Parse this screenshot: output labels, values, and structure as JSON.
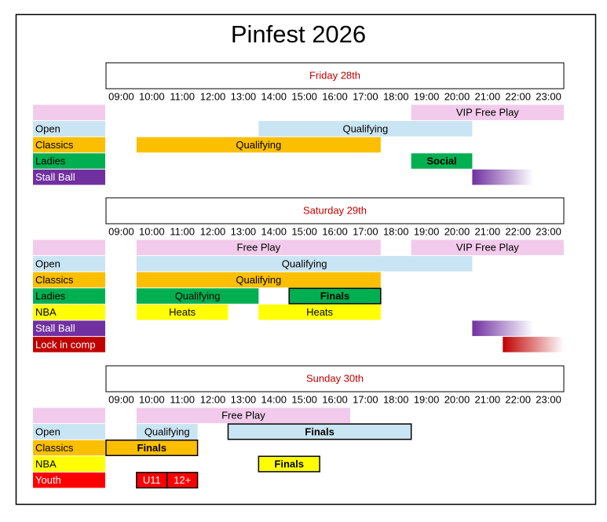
{
  "title": "Pinfest 2026",
  "days": [
    {
      "title": "Friday 28th",
      "times": [
        "09:00",
        "10:00",
        "11:00",
        "12:00",
        "13:00",
        "14:00",
        "15:00",
        "16:00",
        "17:00",
        "18:00",
        "19:00",
        "20:00",
        "21:00",
        "22:00",
        "23:00"
      ],
      "rows": [
        {
          "label": null,
          "color": "#f2cbec",
          "text_color": "#000000",
          "events": [
            {
              "text": "VIP Free Play",
              "start": 19,
              "end": 24
            }
          ]
        },
        {
          "label": "Open",
          "color": "#c9e4f2",
          "text_color": "#000000",
          "events": [
            {
              "text": "Qualifying",
              "start": 14,
              "end": 21
            }
          ]
        },
        {
          "label": "Classics",
          "color": "#fbbf00",
          "text_color": "#000000",
          "events": [
            {
              "text": "Qualifying",
              "start": 10,
              "end": 18
            }
          ]
        },
        {
          "label": "Ladies",
          "color": "#00b050",
          "text_color": "#000000",
          "events": [
            {
              "text": "Social",
              "start": 19,
              "end": 21,
              "bold": true
            }
          ]
        },
        {
          "label": "Stall Ball",
          "color": "#7030a0",
          "text_color": "#ffffff",
          "events": [
            {
              "text": null,
              "start": 21,
              "end": 23,
              "fade": true
            }
          ]
        }
      ]
    },
    {
      "title": "Saturday 29th",
      "times": [
        "09:00",
        "10:00",
        "11:00",
        "12:00",
        "13:00",
        "14:00",
        "15:00",
        "16:00",
        "17:00",
        "18:00",
        "19:00",
        "20:00",
        "21:00",
        "22:00",
        "23:00"
      ],
      "rows": [
        {
          "label": null,
          "color": "#f2cbec",
          "text_color": "#000000",
          "events": [
            {
              "text": "Free Play",
              "start": 10,
              "end": 18
            },
            {
              "text": "VIP Free Play",
              "start": 19,
              "end": 24
            }
          ]
        },
        {
          "label": "Open",
          "color": "#c9e4f2",
          "text_color": "#000000",
          "events": [
            {
              "text": "Qualifying",
              "start": 10,
              "end": 21
            }
          ]
        },
        {
          "label": "Classics",
          "color": "#fbbf00",
          "text_color": "#000000",
          "events": [
            {
              "text": "Qualifying",
              "start": 10,
              "end": 18
            }
          ]
        },
        {
          "label": "Ladies",
          "color": "#00b050",
          "text_color": "#000000",
          "events": [
            {
              "text": "Qualifying",
              "start": 10,
              "end": 14
            },
            {
              "text": "Finals",
              "start": 15,
              "end": 18,
              "bold": true,
              "border": true
            }
          ]
        },
        {
          "label": "NBA",
          "color": "#ffff00",
          "text_color": "#000000",
          "events": [
            {
              "text": "Heats",
              "start": 10,
              "end": 13
            },
            {
              "text": "Heats",
              "start": 14,
              "end": 18
            }
          ]
        },
        {
          "label": "Stall Ball",
          "color": "#7030a0",
          "text_color": "#ffffff",
          "events": [
            {
              "text": null,
              "start": 21,
              "end": 23,
              "fade": true
            }
          ]
        },
        {
          "label": "Lock in comp",
          "color": "#c00000",
          "text_color": "#ffffff",
          "events": [
            {
              "text": null,
              "start": 22,
              "end": 24,
              "fade": true
            }
          ]
        }
      ]
    },
    {
      "title": "Sunday 30th",
      "times": [
        "09:00",
        "10:00",
        "11:00",
        "12:00",
        "13:00",
        "14:00",
        "15:00",
        "16:00",
        "17:00",
        "18:00",
        "19:00",
        "20:00",
        "21:00",
        "22:00",
        "23:00"
      ],
      "rows": [
        {
          "label": null,
          "color": "#f2cbec",
          "text_color": "#000000",
          "events": [
            {
              "text": "Free Play",
              "start": 10,
              "end": 17
            }
          ]
        },
        {
          "label": "Open",
          "color": "#c9e4f2",
          "text_color": "#000000",
          "events": [
            {
              "text": "Qualifying",
              "start": 10,
              "end": 12
            },
            {
              "text": "Finals",
              "start": 13,
              "end": 19,
              "bold": true,
              "border": true
            }
          ]
        },
        {
          "label": "Classics",
          "color": "#fbbf00",
          "text_color": "#000000",
          "events": [
            {
              "text": "Finals",
              "start": 9,
              "end": 12,
              "bold": true,
              "border": true
            }
          ]
        },
        {
          "label": "NBA",
          "color": "#ffff00",
          "text_color": "#000000",
          "events": [
            {
              "text": "Finals",
              "start": 14,
              "end": 16,
              "bold": true,
              "border": true
            }
          ]
        },
        {
          "label": "Youth",
          "color": "#ff0000",
          "text_color": "#ffffff",
          "events": [
            {
              "text": "U11",
              "start": 10,
              "end": 11,
              "border": true
            },
            {
              "text": "12+",
              "start": 11,
              "end": 12,
              "border": true
            }
          ]
        }
      ]
    }
  ]
}
